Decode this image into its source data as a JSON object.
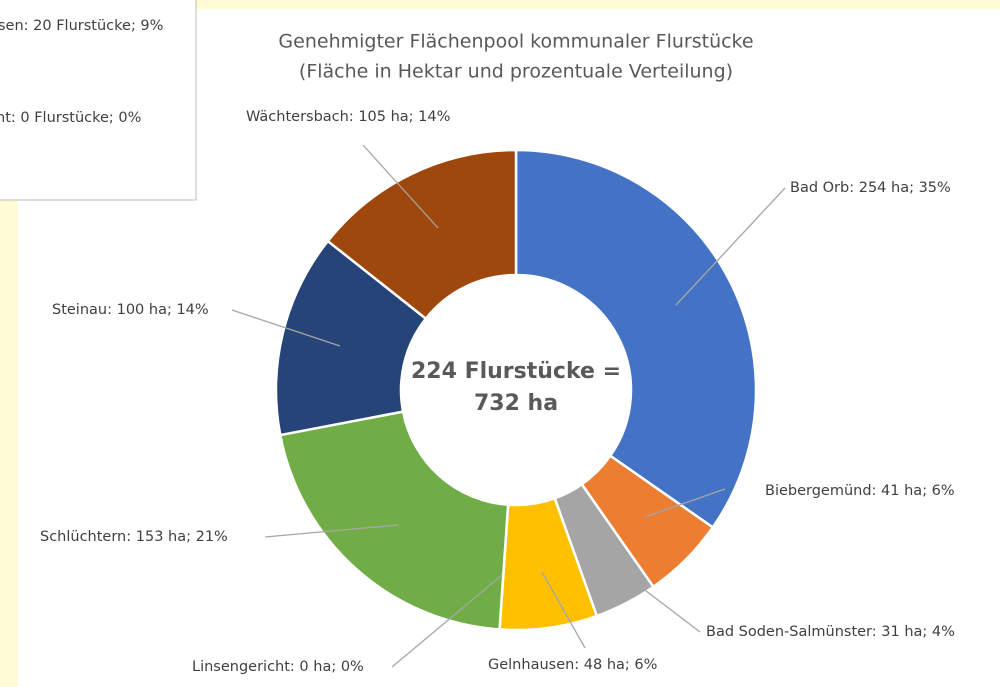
{
  "chart_data": {
    "type": "donut",
    "title": "Genehmigter Flächenpool kommunaler Flurstücke",
    "subtitle": "(Fläche in Hektar und prozentuale Verteilung)",
    "center_text": [
      "224 Flurstücke =",
      "732 ha"
    ],
    "categories": [
      "Bad Orb",
      "Biebergemünd",
      "Bad Soden-Salmünster",
      "Gelnhausen",
      "Linsengericht",
      "Schlüchtern",
      "Steinau",
      "Wächtersbach"
    ],
    "values": [
      254,
      41,
      31,
      48,
      0,
      153,
      100,
      105
    ],
    "value_labels": [
      "Bad Orb: 254 ha; 35%",
      "Biebergemünd: 41 ha; 6%",
      "Bad Soden-Salmünster: 31 ha; 4%",
      "Gelnhausen: 48 ha; 6%",
      "Linsengericht: 0 ha; 0%",
      "Schlüchtern: 153 ha; 21%",
      "Steinau: 100 ha; 14%",
      "Wächtersbach: 105 ha; 14%"
    ],
    "colors": [
      "#4472c4",
      "#ed7d31",
      "#a5a5a5",
      "#ffc000",
      "#5b9bd5",
      "#70ad47",
      "#264478",
      "#9e480e"
    ],
    "other_box_lines": [
      "sen: 20 Flurstücke; 9%",
      "nt: 0 Flurstücke; 0%"
    ]
  }
}
